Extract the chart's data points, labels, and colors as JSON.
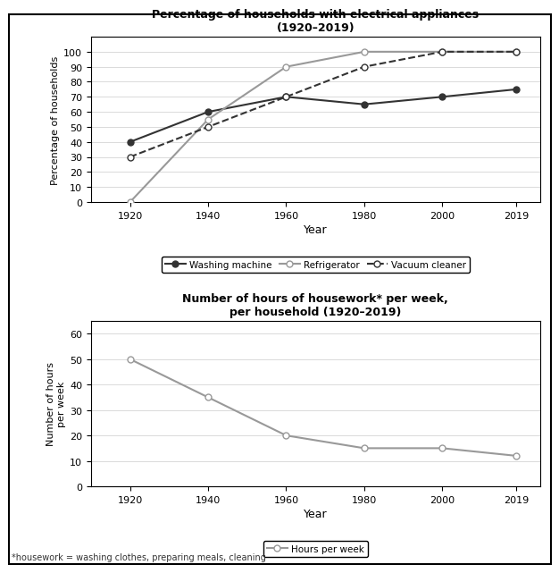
{
  "years": [
    1920,
    1940,
    1960,
    1980,
    2000,
    2019
  ],
  "washing_machine": [
    40,
    60,
    70,
    65,
    70,
    75
  ],
  "refrigerator": [
    0,
    55,
    90,
    100,
    100,
    100
  ],
  "vacuum_cleaner": [
    30,
    50,
    70,
    90,
    100,
    100
  ],
  "hours_per_week": [
    50,
    35,
    20,
    15,
    15,
    12
  ],
  "chart1_title": "Percentage of households with electrical appliances\n(1920–2019)",
  "chart1_ylabel": "Percentage of households",
  "chart1_xlabel": "Year",
  "chart1_ylim": [
    0,
    110
  ],
  "chart1_yticks": [
    0,
    10,
    20,
    30,
    40,
    50,
    60,
    70,
    80,
    90,
    100
  ],
  "chart2_title": "Number of hours of housework* per week,\nper household (1920–2019)",
  "chart2_ylabel": "Number of hours\nper week",
  "chart2_xlabel": "Year",
  "chart2_ylim": [
    0,
    65
  ],
  "chart2_yticks": [
    0,
    10,
    20,
    30,
    40,
    50,
    60
  ],
  "footnote": "*housework = washing clothes, preparing meals, cleaning",
  "line_color_dark": "#333333",
  "line_color_gray": "#999999",
  "background_color": "#ffffff",
  "border_color": "#000000"
}
